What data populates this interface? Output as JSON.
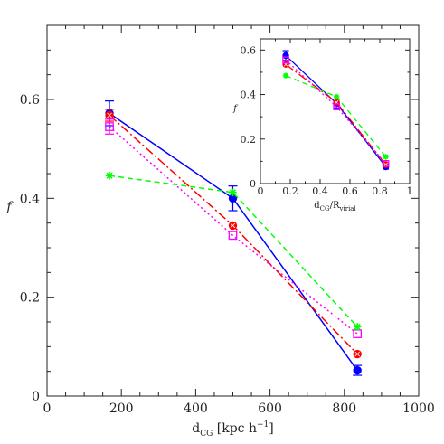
{
  "chart_data": [
    {
      "id": "main",
      "type": "line",
      "xlabel": {
        "main": "d",
        "sub": "CG",
        "rest": " [kpc h",
        "sup": "−1",
        "end": "]"
      },
      "ylabel": "f",
      "xlim": [
        0,
        1000
      ],
      "ylim": [
        0,
        0.75
      ],
      "xticks": [
        0,
        200,
        400,
        600,
        800,
        1000
      ],
      "yticks": [
        0,
        0.2,
        0.4,
        0.6
      ],
      "xtick_labels": [
        "0",
        "200",
        "400",
        "600",
        "800",
        "1000"
      ],
      "ytick_labels": [
        "0",
        "0.2",
        "0.4",
        "0.6"
      ],
      "series": [
        {
          "color": "#0000ff",
          "dash": "",
          "marker": "circle",
          "x": [
            168,
            500,
            835
          ],
          "y": [
            0.572,
            0.4,
            0.052
          ],
          "err": [
            0.025,
            0.025,
            0.01
          ]
        },
        {
          "color": "#ff0000",
          "dash": "10,3,2,3",
          "marker": "circle-x",
          "x": [
            168,
            500,
            835
          ],
          "y": [
            0.568,
            0.345,
            0.085
          ],
          "err": [
            0.012,
            0.0,
            0.0
          ]
        },
        {
          "color": "#ff00ff",
          "dash": "2,3",
          "marker": "square",
          "x": [
            168,
            500,
            835
          ],
          "y": [
            0.545,
            0.325,
            0.126
          ],
          "err": [
            0.015,
            0.0,
            0.0
          ]
        },
        {
          "color": "#00ff00",
          "dash": "6,4",
          "marker": "star",
          "x": [
            168,
            500,
            835
          ],
          "y": [
            0.446,
            0.412,
            0.14
          ],
          "err": [
            0.0,
            0.0,
            0.0
          ]
        }
      ]
    },
    {
      "id": "inset",
      "type": "line",
      "xlabel": {
        "main": "d",
        "sub": "CG",
        "rest": "/R",
        "sub2": "virial"
      },
      "ylabel": "f",
      "xlim": [
        0,
        1
      ],
      "ylim": [
        0,
        0.65
      ],
      "xticks": [
        0,
        0.2,
        0.4,
        0.6,
        0.8,
        1
      ],
      "yticks": [
        0,
        0.2,
        0.4,
        0.6
      ],
      "xtick_labels": [
        "0",
        "0.2",
        "0.4",
        "0.6",
        "0.8",
        "1"
      ],
      "ytick_labels": [
        "0",
        "0.2",
        "0.4",
        "0.6"
      ],
      "series": [
        {
          "color": "#0000ff",
          "dash": "",
          "marker": "circle",
          "x": [
            0.17,
            0.51,
            0.84
          ],
          "y": [
            0.575,
            0.36,
            0.075
          ],
          "err": [
            0.022,
            0.02,
            0.01
          ]
        },
        {
          "color": "#ff0000",
          "dash": "10,3,2,3",
          "marker": "circle-x",
          "x": [
            0.17,
            0.51,
            0.84
          ],
          "y": [
            0.535,
            0.365,
            0.085
          ],
          "err": [
            0.0,
            0.0,
            0.0
          ]
        },
        {
          "color": "#ff00ff",
          "dash": "2,3",
          "marker": "square",
          "x": [
            0.17,
            0.51,
            0.84
          ],
          "y": [
            0.555,
            0.345,
            0.09
          ],
          "err": [
            0.0,
            0.0,
            0.0
          ]
        },
        {
          "color": "#00ff00",
          "dash": "6,4",
          "marker": "star",
          "x": [
            0.17,
            0.51,
            0.84
          ],
          "y": [
            0.485,
            0.39,
            0.12
          ],
          "err": [
            0.0,
            0.0,
            0.0
          ]
        }
      ]
    }
  ]
}
